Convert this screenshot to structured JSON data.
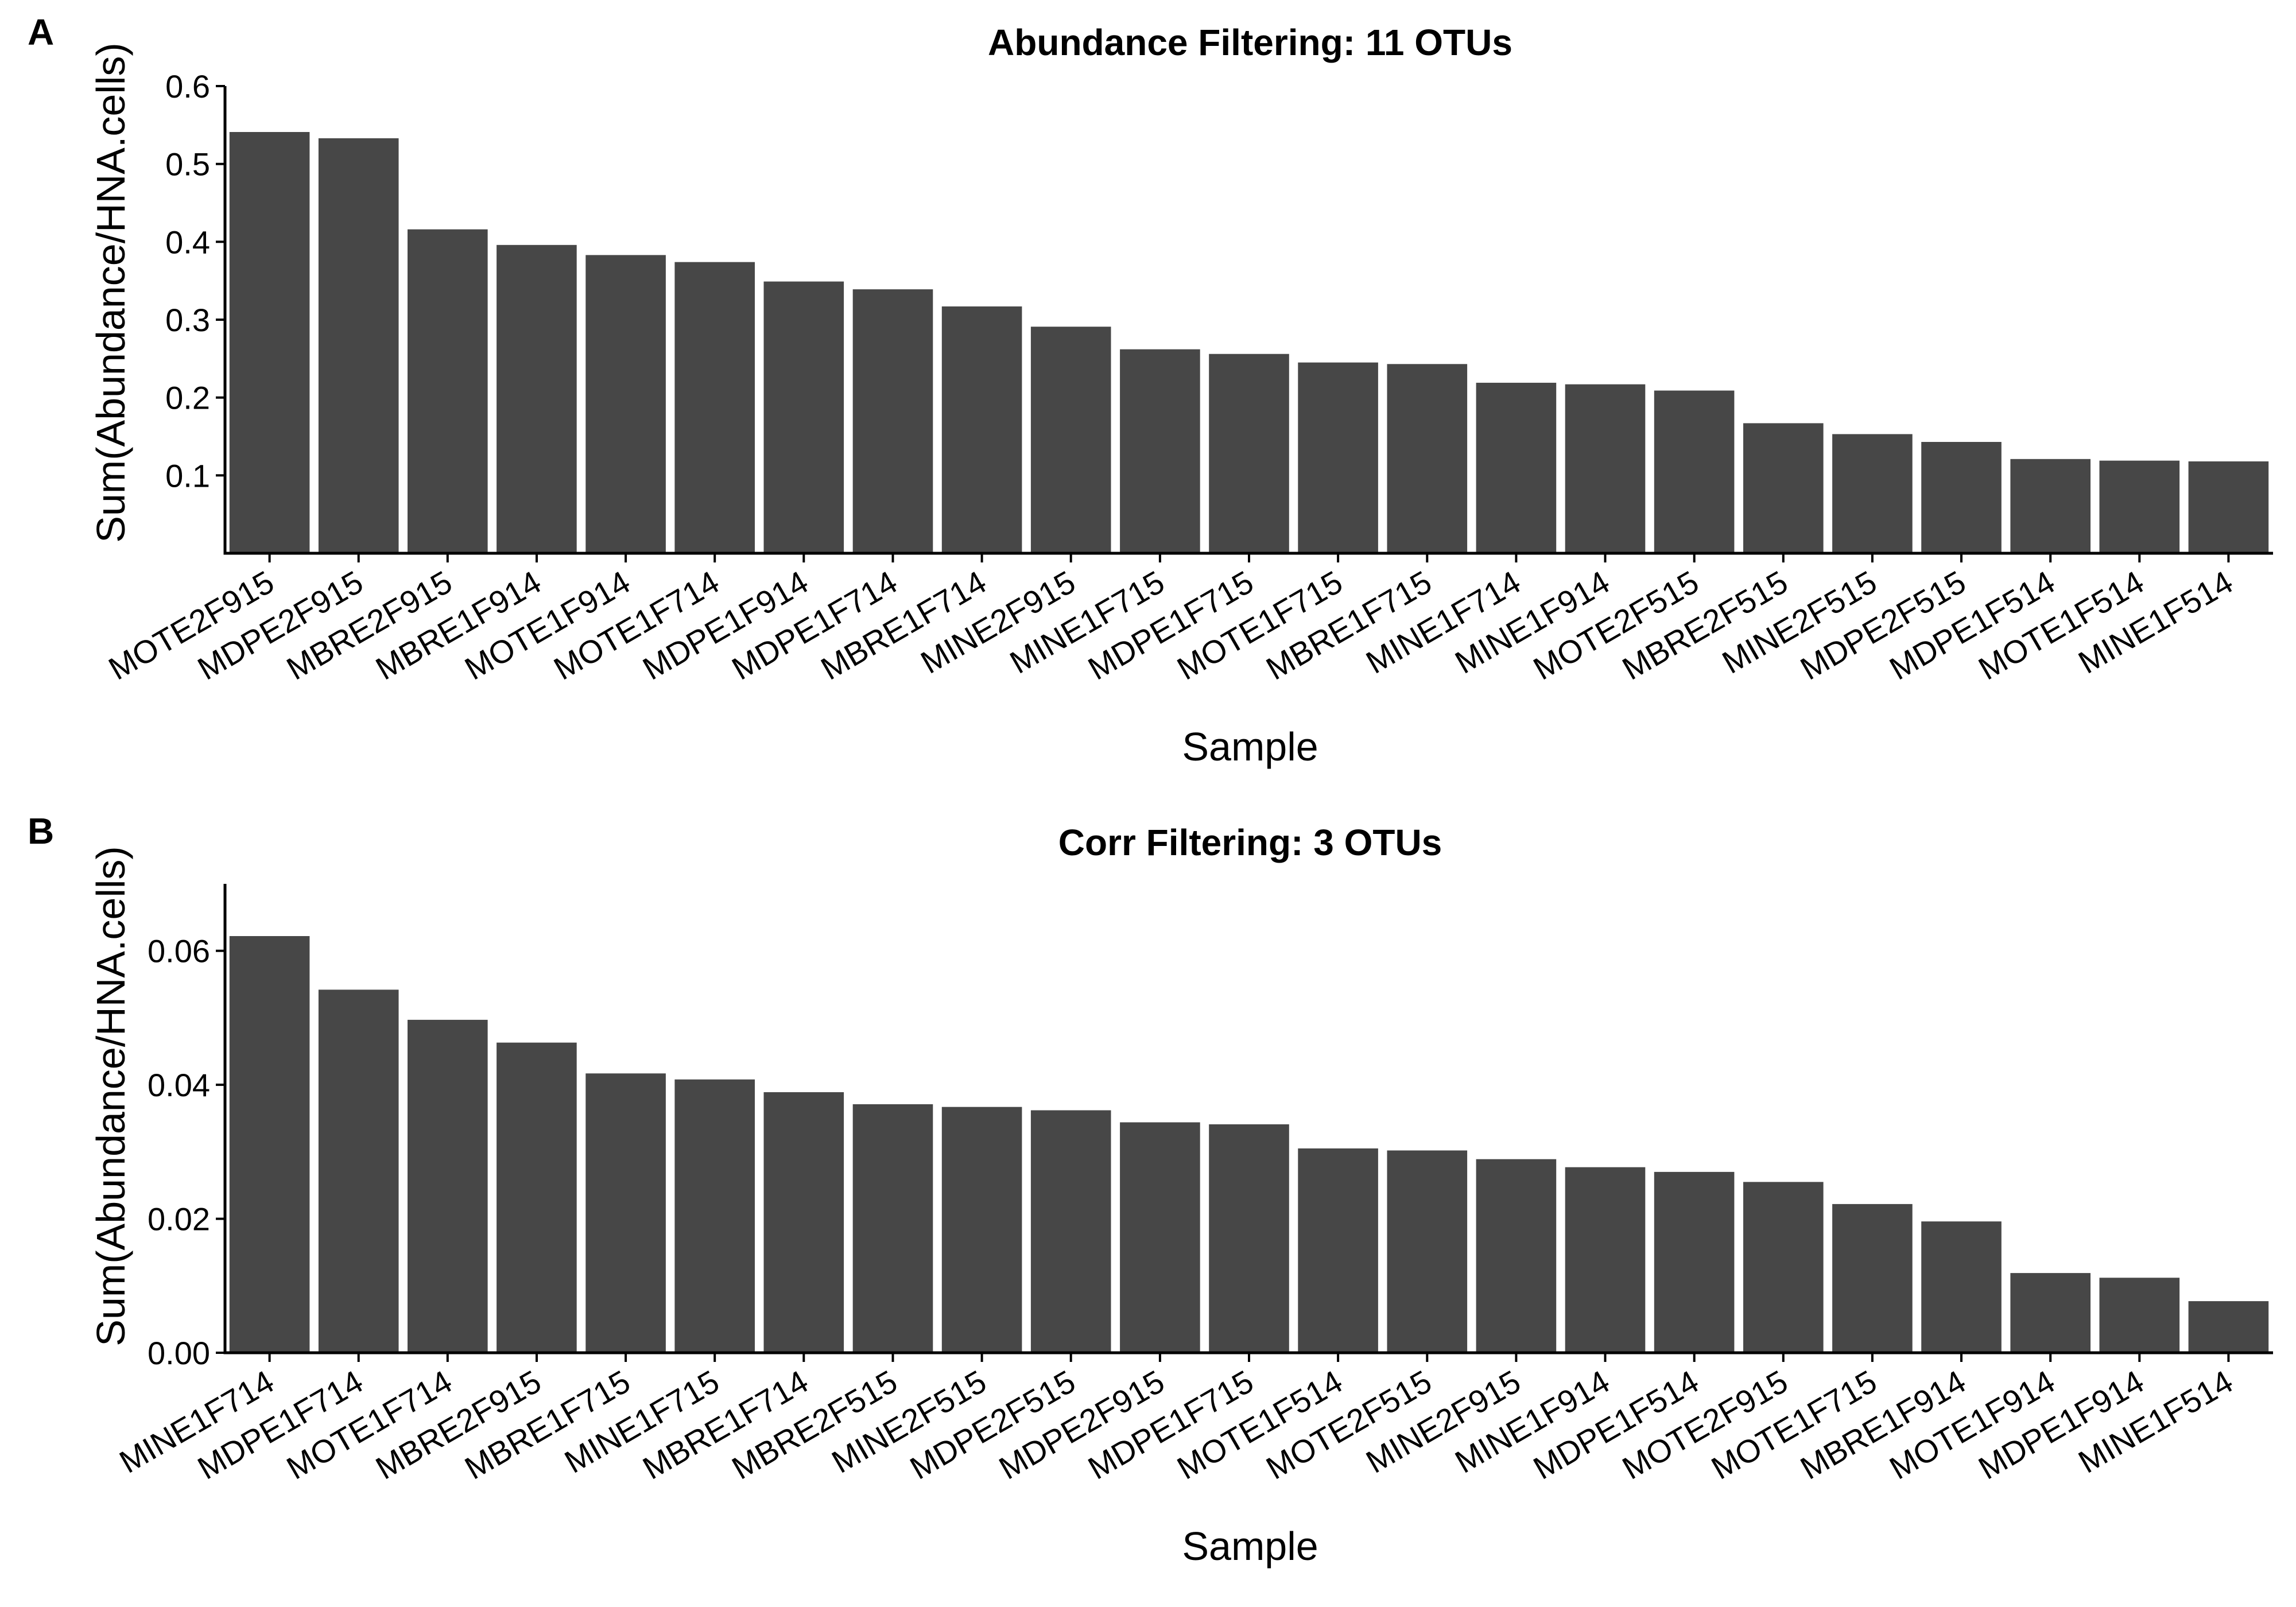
{
  "chart_data": [
    {
      "panel": "A",
      "type": "bar",
      "title": "Abundance Filtering:  11 OTUs",
      "xlabel": "Sample",
      "ylabel": "Sum(Abundance/HNA.cells)",
      "ylim": [
        0,
        0.6
      ],
      "yticks": [
        0.1,
        0.2,
        0.3,
        0.4,
        0.5,
        0.6
      ],
      "ytick_decimals": 1,
      "grid": false,
      "bar_color": "#474747",
      "categories": [
        "MOTE2F915",
        "MDPE2F915",
        "MBRE2F915",
        "MBRE1F914",
        "MOTE1F914",
        "MOTE1F714",
        "MDPE1F914",
        "MDPE1F714",
        "MBRE1F714",
        "MINE2F915",
        "MINE1F715",
        "MDPE1F715",
        "MOTE1F715",
        "MBRE1F715",
        "MINE1F714",
        "MINE1F914",
        "MOTE2F515",
        "MBRE2F515",
        "MINE2F515",
        "MDPE2F515",
        "MDPE1F514",
        "MOTE1F514",
        "MINE1F514"
      ],
      "values": [
        0.541,
        0.533,
        0.416,
        0.396,
        0.383,
        0.374,
        0.349,
        0.339,
        0.317,
        0.291,
        0.262,
        0.256,
        0.245,
        0.243,
        0.219,
        0.217,
        0.209,
        0.167,
        0.153,
        0.143,
        0.121,
        0.119,
        0.118
      ]
    },
    {
      "panel": "B",
      "type": "bar",
      "title": "Corr Filtering:  3 OTUs",
      "xlabel": "Sample",
      "ylabel": "Sum(Abundance/HNA.cells)",
      "ylim": [
        0,
        0.07
      ],
      "yticks": [
        0.0,
        0.02,
        0.04,
        0.06
      ],
      "ytick_decimals": 2,
      "grid": false,
      "bar_color": "#474747",
      "categories": [
        "MINE1F714",
        "MDPE1F714",
        "MOTE1F714",
        "MBRE2F915",
        "MBRE1F715",
        "MINE1F715",
        "MBRE1F714",
        "MBRE2F515",
        "MINE2F515",
        "MDPE2F515",
        "MDPE2F915",
        "MDPE1F715",
        "MOTE1F514",
        "MOTE2F515",
        "MINE2F915",
        "MINE1F914",
        "MDPE1F514",
        "MOTE2F915",
        "MOTE1F715",
        "MBRE1F914",
        "MOTE1F914",
        "MDPE1F914",
        "MINE1F514"
      ],
      "values": [
        0.0622,
        0.0542,
        0.0497,
        0.0463,
        0.0417,
        0.0408,
        0.0389,
        0.0371,
        0.0367,
        0.0362,
        0.0344,
        0.0341,
        0.0305,
        0.0302,
        0.0289,
        0.0277,
        0.027,
        0.0255,
        0.0222,
        0.0196,
        0.0119,
        0.0112,
        0.0077
      ]
    }
  ]
}
